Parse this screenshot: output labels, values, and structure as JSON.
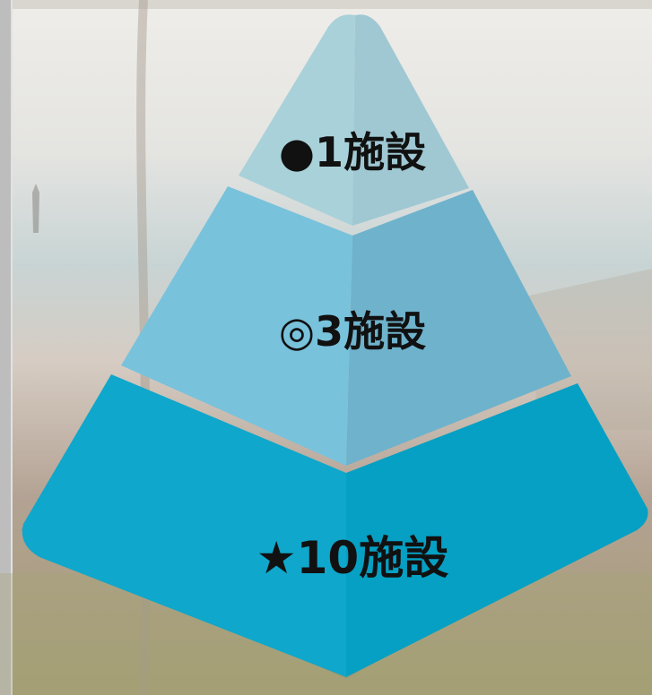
{
  "pyramid": {
    "tiers": [
      {
        "label": "●1施設",
        "colors": {
          "left": "#a9d1d9",
          "right": "#9fc8d3"
        }
      },
      {
        "label": "◎3施設",
        "colors": {
          "left": "#79c2dc",
          "right": "#6fb2cc"
        }
      },
      {
        "label": "★10施設",
        "colors": {
          "left": "#0fa7cb",
          "right": "#05a0c3"
        }
      }
    ]
  },
  "colors": {
    "background_sky": "#e9e7e3",
    "background_sea": "#c7d2d3",
    "background_sand": "#b8a79a",
    "background_brush": "#a7a278",
    "left_strip": "#b9b9b9"
  }
}
